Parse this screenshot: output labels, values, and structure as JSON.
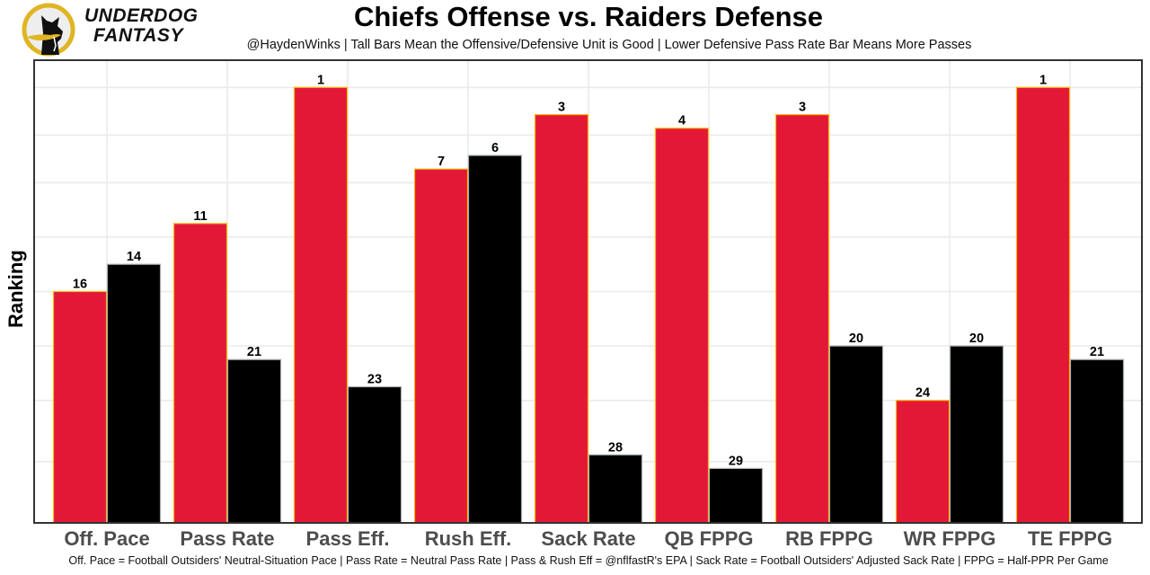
{
  "logo": {
    "line1": "UNDERDOG",
    "line2": "FANTASY",
    "icon": "underdog-dog-logo-icon"
  },
  "colors": {
    "offense_fill": "#E31837",
    "offense_outline": "#FFB612",
    "defense_fill": "#000000",
    "defense_outline": "#A5ACAF",
    "grid": "#ebebeb",
    "panel_border": "#333333"
  },
  "chart_data": {
    "type": "bar",
    "title": "Chiefs Offense vs. Raiders Defense",
    "subtitle": "@HaydenWinks | Tall Bars Mean the Offensive/Defensive Unit is Good | Lower Defensive Pass Rate Bar Means More Passes",
    "xlabel": "",
    "ylabel": "Ranking",
    "caption": "Off. Pace = Football Outsiders' Neutral-Situation Pace | Pass Rate = Neutral Pass Rate | Pass & Rush Eff = @nflfastR's EPA | Sack Rate = Football Outsiders' Adjusted Sack Rate | FPPG = Half-PPR Per Game",
    "categories": [
      "Off. Pace",
      "Pass Rate",
      "Pass Eff.",
      "Rush Eff.",
      "Sack Rate",
      "QB FPPG",
      "RB FPPG",
      "WR FPPG",
      "TE FPPG"
    ],
    "series": [
      {
        "name": "Chiefs Offense",
        "ranks": [
          16,
          11,
          1,
          7,
          3,
          4,
          3,
          24,
          1
        ]
      },
      {
        "name": "Raiders Defense",
        "ranks": [
          14,
          21,
          23,
          6,
          28,
          29,
          20,
          20,
          21
        ]
      }
    ],
    "bar_height_rule": "height = 33 - rank (rank 1 tallest)",
    "ylim": [
      0,
      34
    ],
    "y_gridlines_value": [
      4.5,
      9,
      13,
      17,
      21,
      25,
      28.5,
      32
    ],
    "y_tick_labels_shown": false,
    "grid": true,
    "legend": "none"
  }
}
